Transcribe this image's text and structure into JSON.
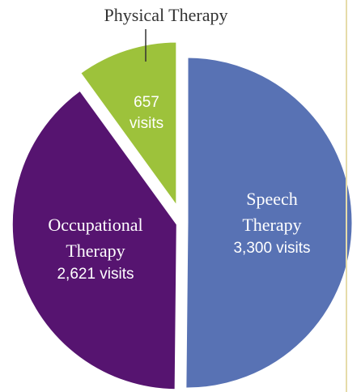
{
  "chart_data": {
    "type": "pie",
    "categories": [
      "Speech Therapy",
      "Occupational Therapy",
      "Physical Therapy"
    ],
    "values": [
      3300,
      2621,
      657
    ],
    "value_labels": [
      "3,300 visits",
      "2,621 visits",
      "657 visits"
    ],
    "colors": [
      "#5872b4",
      "#561470",
      "#9dc23b"
    ]
  }
}
